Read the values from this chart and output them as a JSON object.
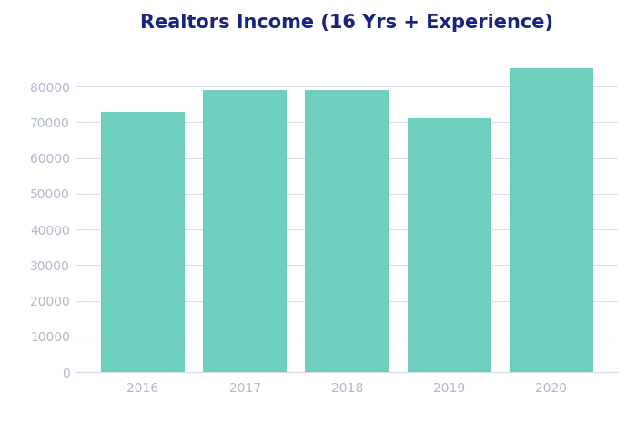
{
  "title": "Realtors Income (16 Yrs + Experience)",
  "categories": [
    "2016",
    "2017",
    "2018",
    "2019",
    "2020"
  ],
  "values": [
    73000,
    79000,
    79000,
    71000,
    85000
  ],
  "bar_color": "#6ECFBE",
  "background_color": "#ffffff",
  "title_color": "#1a237e",
  "tick_color": "#b0b8cc",
  "grid_color": "#d8dce8",
  "ylim": [
    0,
    90000
  ],
  "yticks": [
    0,
    10000,
    20000,
    30000,
    40000,
    50000,
    60000,
    70000,
    80000
  ],
  "title_fontsize": 15,
  "tick_fontsize": 10,
  "bar_width": 0.82
}
